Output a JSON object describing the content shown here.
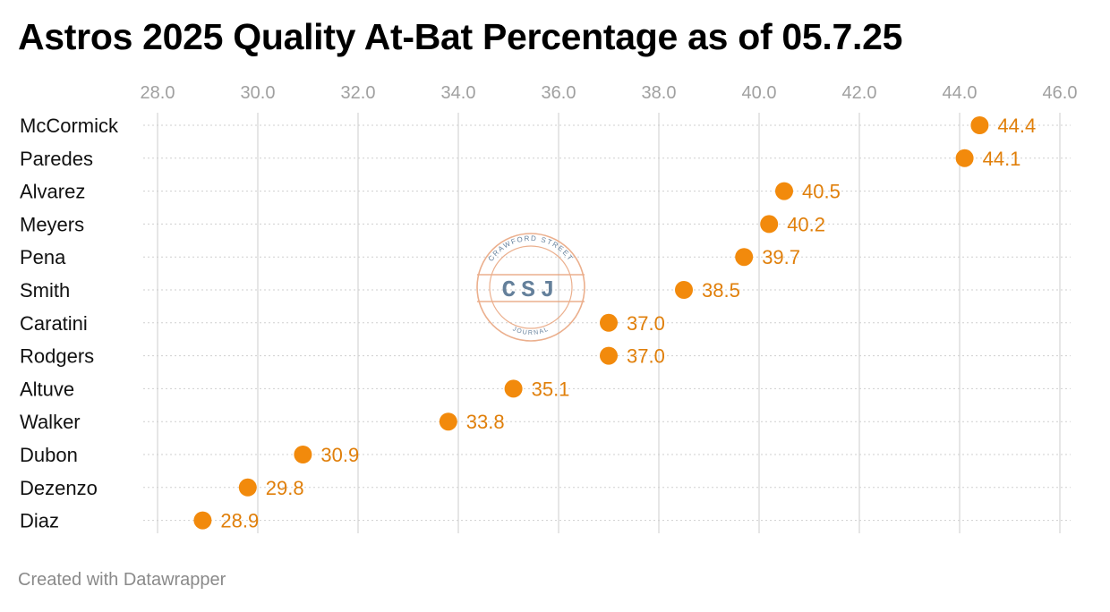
{
  "title": "Astros 2025 Quality At-Bat Percentage as of 05.7.25",
  "footer": "Created with Datawrapper",
  "watermark": {
    "top_text": "CRAWFORD STREET",
    "center_text": "CSJ",
    "bottom_text": "JOURNAL",
    "ring_color": "#e8a27a",
    "text_color": "#4a6a8a"
  },
  "colors": {
    "dot": "#f28a0c",
    "value_label": "#e07f0a",
    "grid": "#dddddd",
    "row_line": "#cfcfcf"
  },
  "chart_data": {
    "type": "scatter",
    "title": "Astros 2025 Quality At-Bat Percentage as of 05.7.25",
    "xlabel": "",
    "ylabel": "",
    "xlim": [
      28.0,
      46.0
    ],
    "x_ticks": [
      "28.0",
      "30.0",
      "32.0",
      "34.0",
      "36.0",
      "38.0",
      "40.0",
      "42.0",
      "44.0",
      "46.0"
    ],
    "grid": true,
    "legend": "none",
    "categories": [
      "McCormick",
      "Paredes",
      "Alvarez",
      "Meyers",
      "Pena",
      "Smith",
      "Caratini",
      "Rodgers",
      "Altuve",
      "Walker",
      "Dubon",
      "Dezenzo",
      "Diaz"
    ],
    "values": [
      44.4,
      44.1,
      40.5,
      40.2,
      39.7,
      38.5,
      37.0,
      37.0,
      35.1,
      33.8,
      30.9,
      29.8,
      28.9
    ],
    "value_labels": [
      "44.4",
      "44.1",
      "40.5",
      "40.2",
      "39.7",
      "38.5",
      "37.0",
      "37.0",
      "35.1",
      "33.8",
      "30.9",
      "29.8",
      "28.9"
    ]
  }
}
